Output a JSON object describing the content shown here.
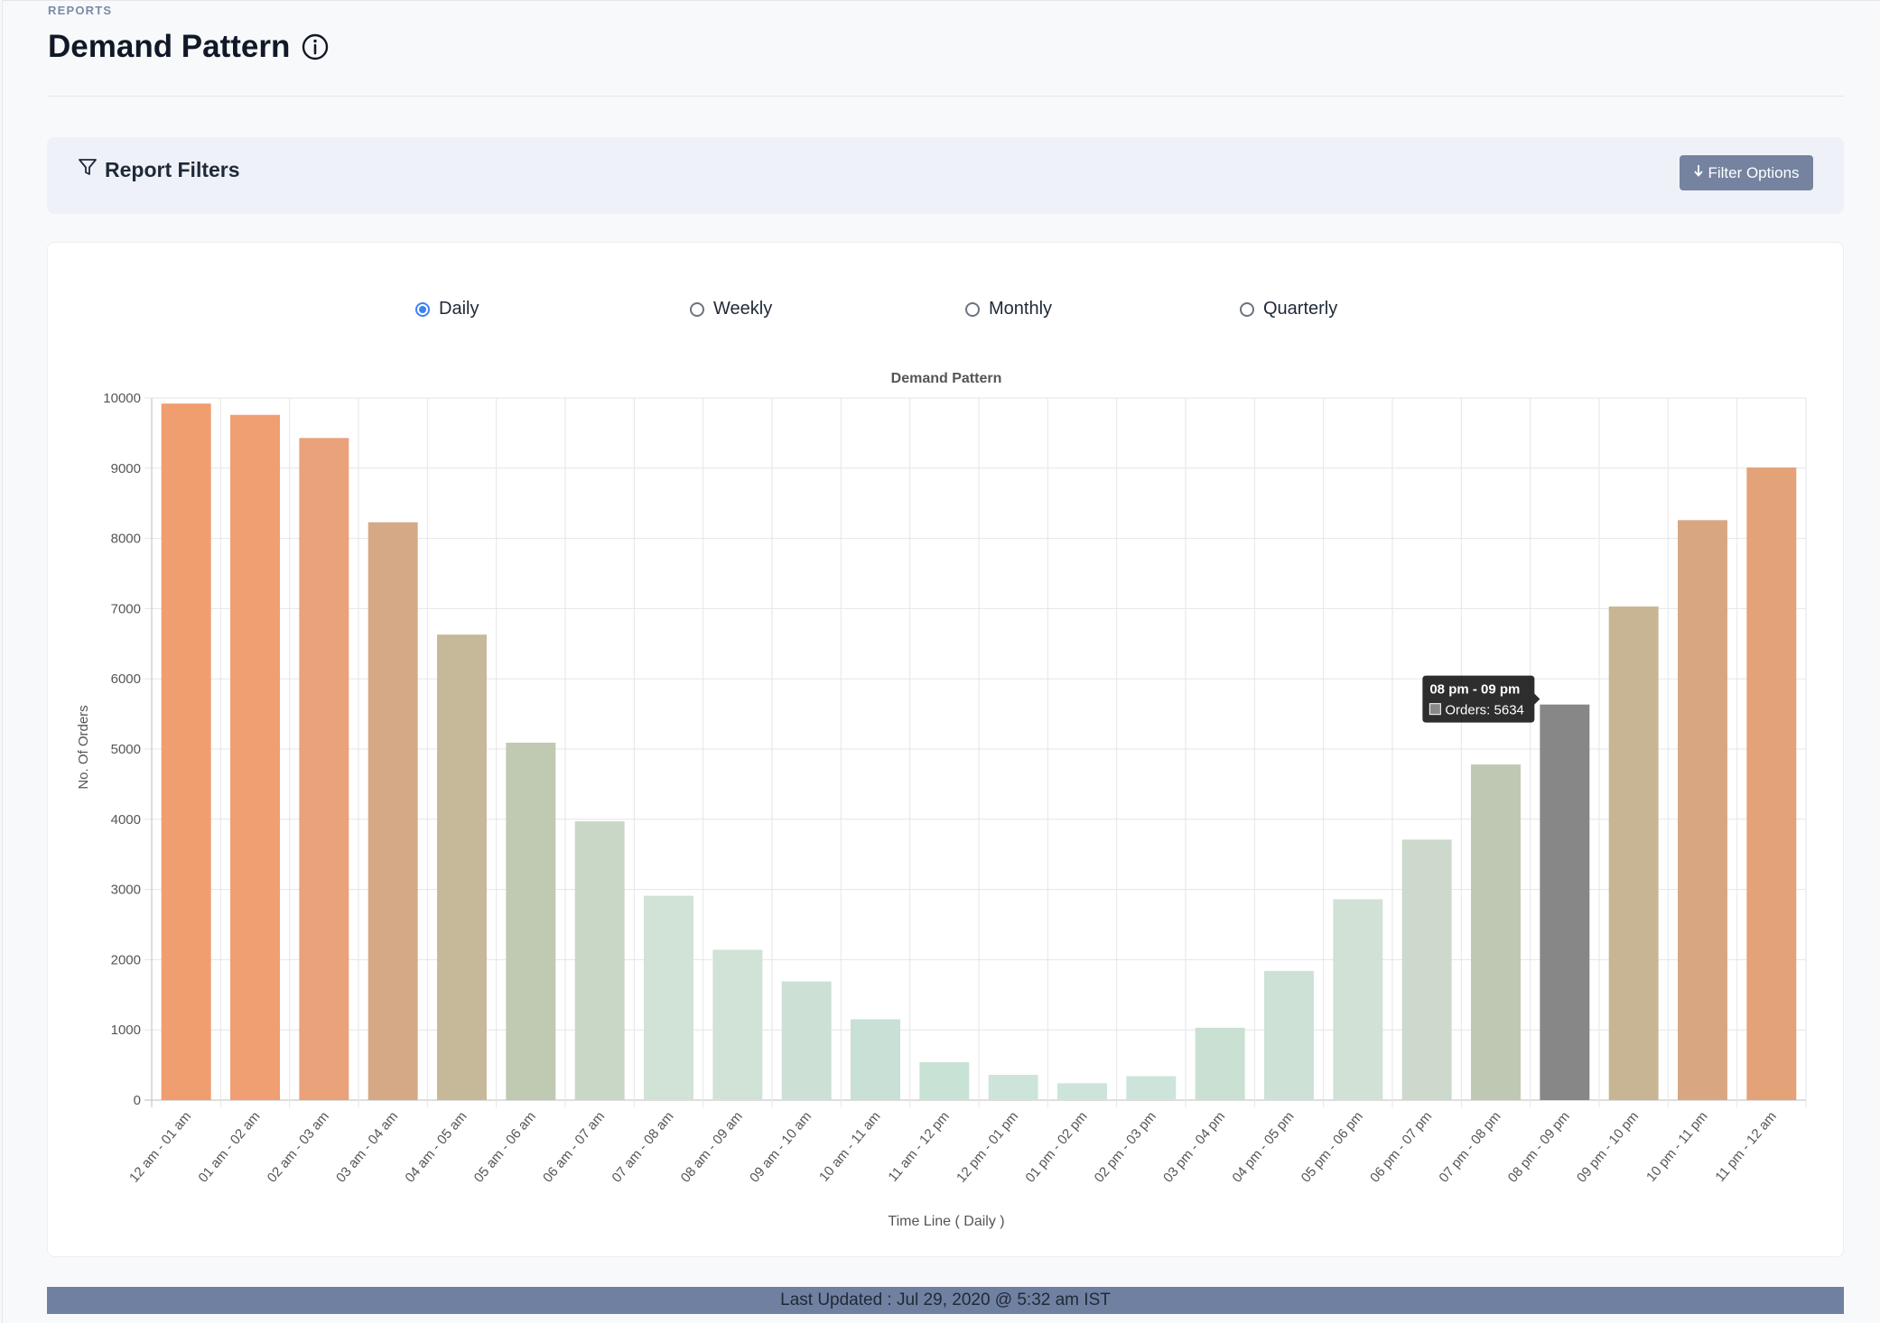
{
  "breadcrumb": "REPORTS",
  "page": {
    "title": "Demand Pattern",
    "info_icon": "info-circle-icon"
  },
  "filters": {
    "label": "Report Filters",
    "icon": "funnel-icon",
    "button_label": "Filter Options",
    "button_icon": "arrow-down-icon"
  },
  "period_options": [
    {
      "label": "Daily",
      "checked": true
    },
    {
      "label": "Weekly",
      "checked": false
    },
    {
      "label": "Monthly",
      "checked": false
    },
    {
      "label": "Quarterly",
      "checked": false
    }
  ],
  "chart_data": {
    "type": "bar",
    "title": "Demand Pattern",
    "xlabel": "Time Line ( Daily )",
    "ylabel": "No. Of Orders",
    "ylim": [
      0,
      10000
    ],
    "yticks": [
      0,
      1000,
      2000,
      3000,
      4000,
      5000,
      6000,
      7000,
      8000,
      9000,
      10000
    ],
    "grid": true,
    "categories": [
      "12 am - 01 am",
      "01 am - 02 am",
      "02 am - 03 am",
      "03 am - 04 am",
      "04 am - 05 am",
      "05 am - 06 am",
      "06 am - 07 am",
      "07 am - 08 am",
      "08 am - 09 am",
      "09 am - 10 am",
      "10 am - 11 am",
      "11 am - 12 pm",
      "12 pm - 01 pm",
      "01 pm - 02 pm",
      "02 pm - 03 pm",
      "03 pm - 04 pm",
      "04 pm - 05 pm",
      "05 pm - 06 pm",
      "06 pm - 07 pm",
      "07 pm - 08 pm",
      "08 pm - 09 pm",
      "09 pm - 10 pm",
      "10 pm - 11 pm",
      "11 pm - 12 am"
    ],
    "values": [
      9920,
      9760,
      9430,
      8230,
      6630,
      5090,
      3970,
      2910,
      2140,
      1690,
      1150,
      540,
      360,
      240,
      340,
      1030,
      1840,
      2860,
      3710,
      4780,
      5634,
      7030,
      8260,
      9010
    ],
    "colors": [
      "#f09d6f",
      "#ef9f72",
      "#e9a27a",
      "#d5a985",
      "#c5b99a",
      "#c0c9b2",
      "#c9d7c6",
      "#d1e2d7",
      "#d1e2d7",
      "#cce0d6",
      "#c8e0d5",
      "#c8e2d5",
      "#cde4da",
      "#cde4da",
      "#cde4da",
      "#c9e0d3",
      "#cde1d6",
      "#d1e1d6",
      "#ccd9cc",
      "#bfc8b2",
      "#878787",
      "#c8b593",
      "#d8a781",
      "#e3a277"
    ],
    "tooltip": {
      "title": "08 pm - 09 pm",
      "label": "Orders: 5634",
      "index": 20
    }
  },
  "footer": {
    "text": "Last Updated : Jul 29, 2020 @ 5:32 am IST"
  }
}
